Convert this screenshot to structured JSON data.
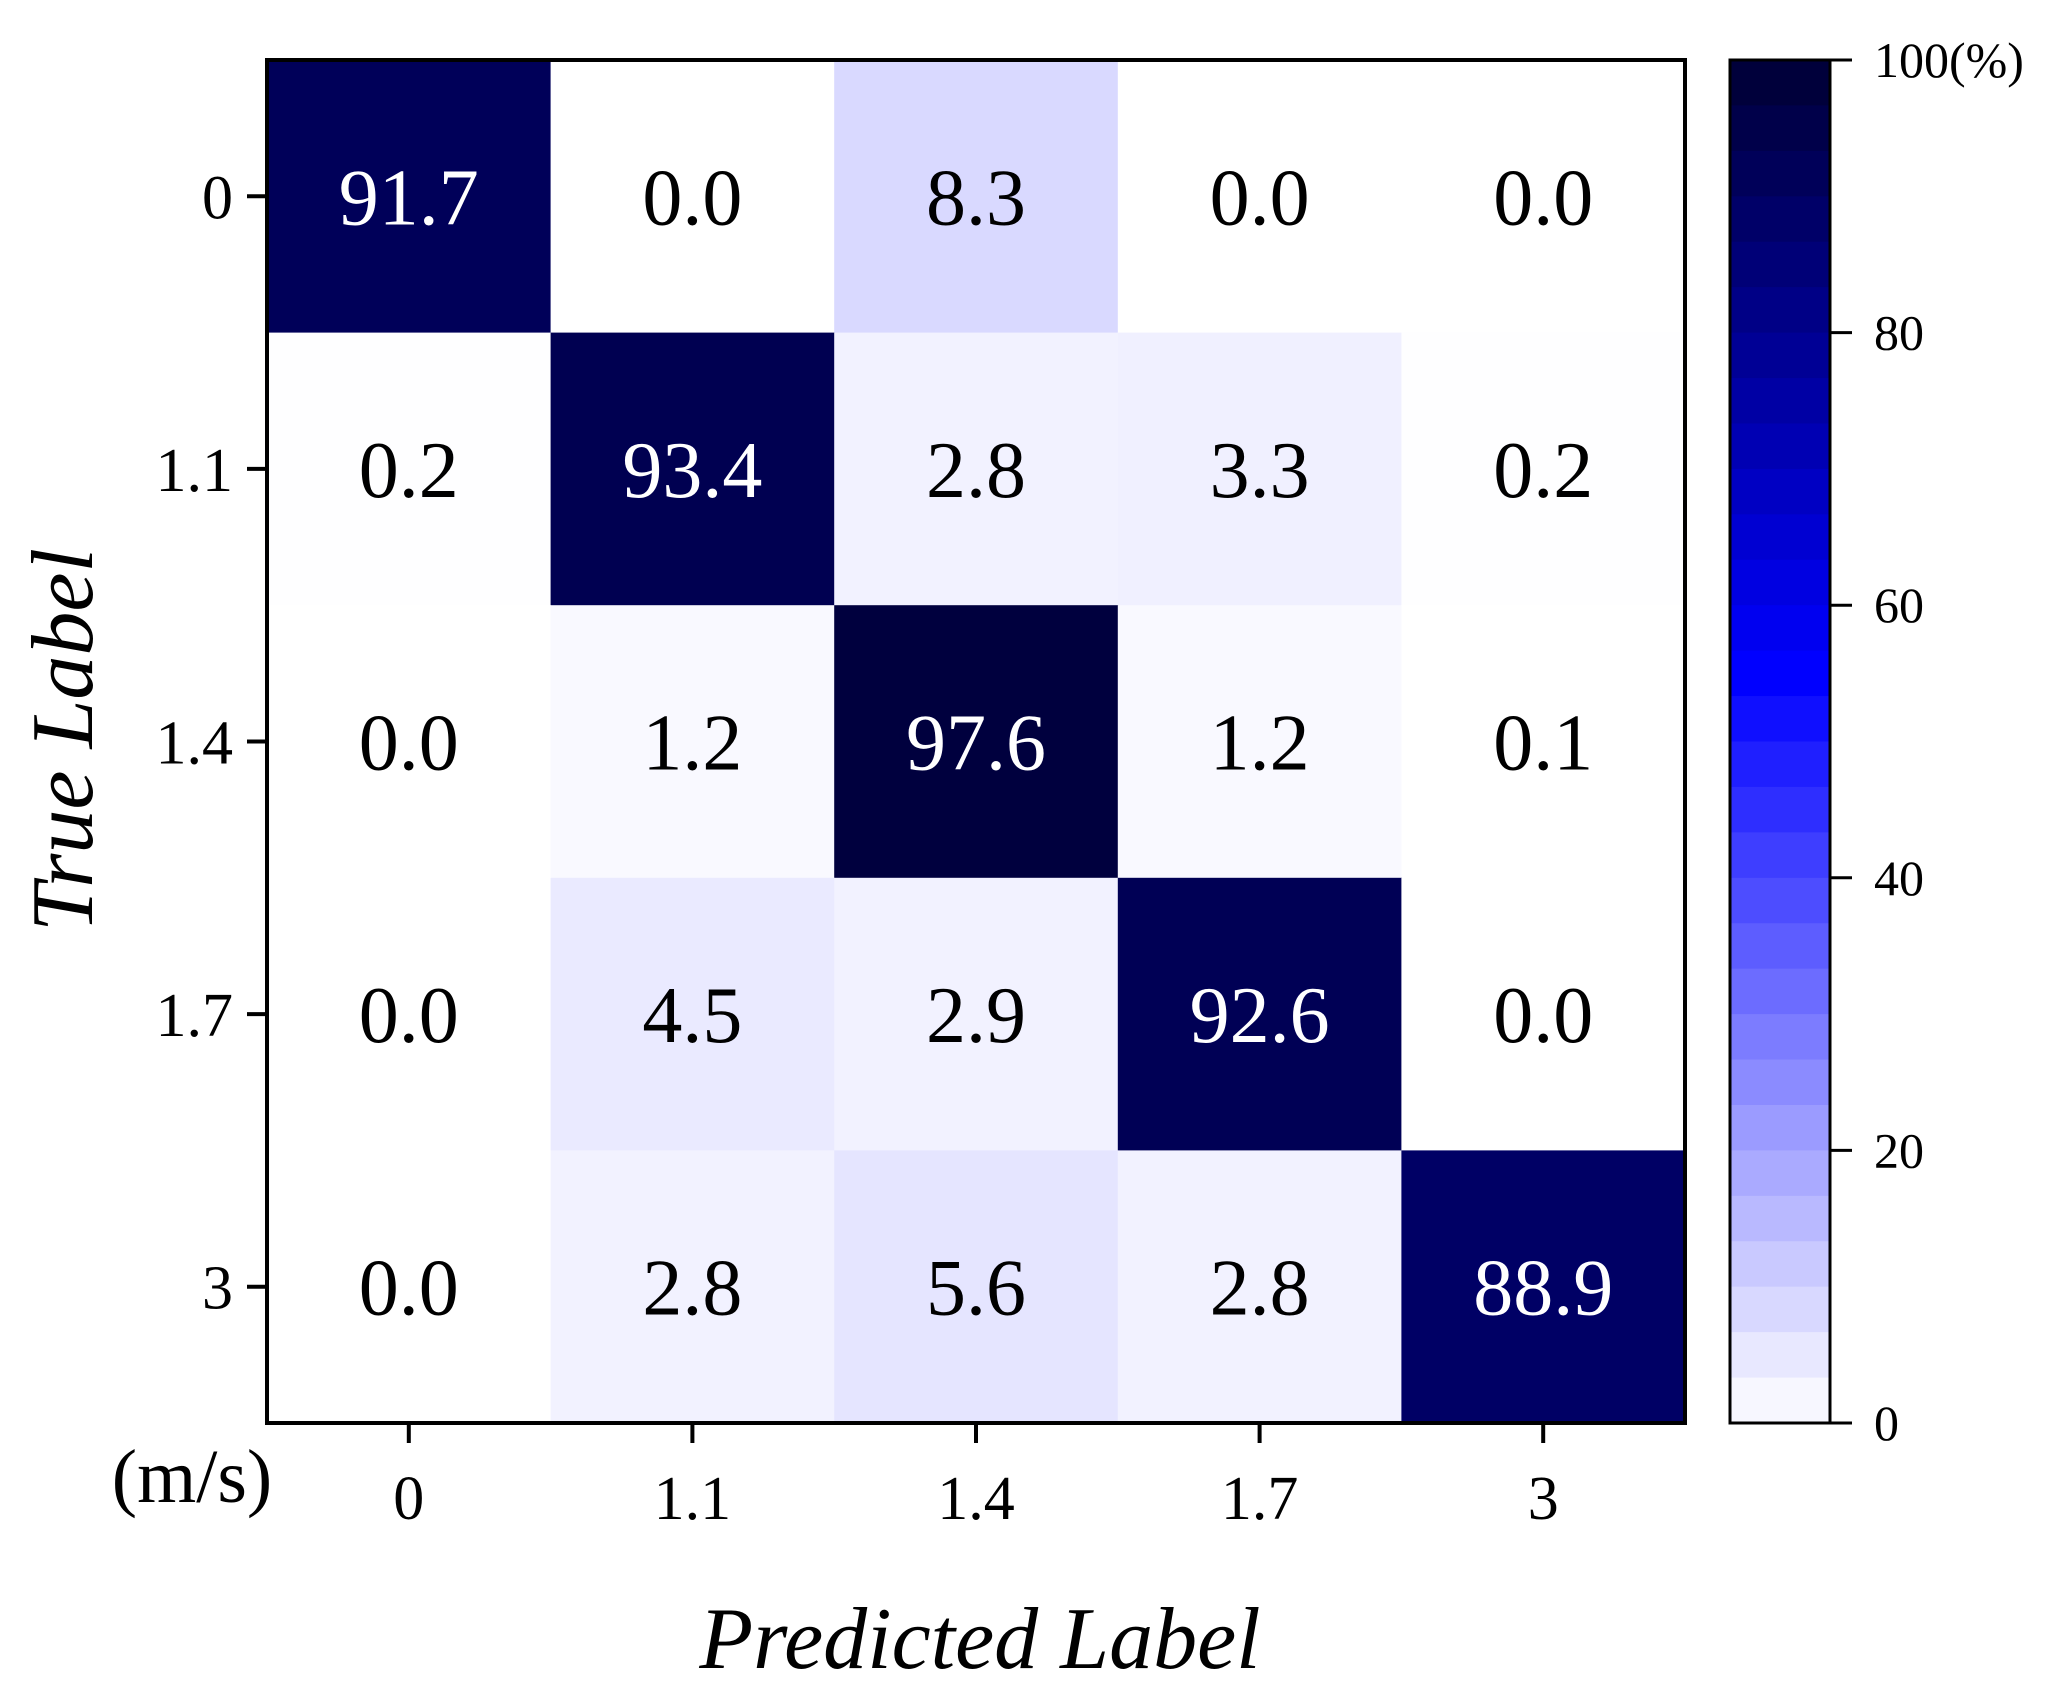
{
  "chart_data": {
    "type": "heatmap",
    "xlabel": "Predicted Label",
    "ylabel": "True Label",
    "unit_label": "(m/s)",
    "x_categories": [
      "0",
      "1.1",
      "1.4",
      "1.7",
      "3"
    ],
    "y_categories": [
      "0",
      "1.1",
      "1.4",
      "1.7",
      "3"
    ],
    "values": [
      [
        91.7,
        0.0,
        8.3,
        0.0,
        0.0
      ],
      [
        0.2,
        93.4,
        2.8,
        3.3,
        0.2
      ],
      [
        0.0,
        1.2,
        97.6,
        1.2,
        0.1
      ],
      [
        0.0,
        4.5,
        2.9,
        92.6,
        0.0
      ],
      [
        0.0,
        2.8,
        5.6,
        2.8,
        88.9
      ]
    ],
    "value_format": "0.0",
    "colorbar": {
      "ticks": [
        {
          "value": 0,
          "label": "0"
        },
        {
          "value": 20,
          "label": "20"
        },
        {
          "value": 40,
          "label": "40"
        },
        {
          "value": 60,
          "label": "60"
        },
        {
          "value": 80,
          "label": "80"
        },
        {
          "value": 100,
          "label": "100(%)"
        }
      ],
      "range": [
        0,
        100
      ],
      "levels": 30
    },
    "colors": {
      "low": "#ffffff",
      "mid": "#0000ff",
      "high": "#000033",
      "text_dark_cell": "#ffffff",
      "text_light_cell": "#000000"
    }
  }
}
